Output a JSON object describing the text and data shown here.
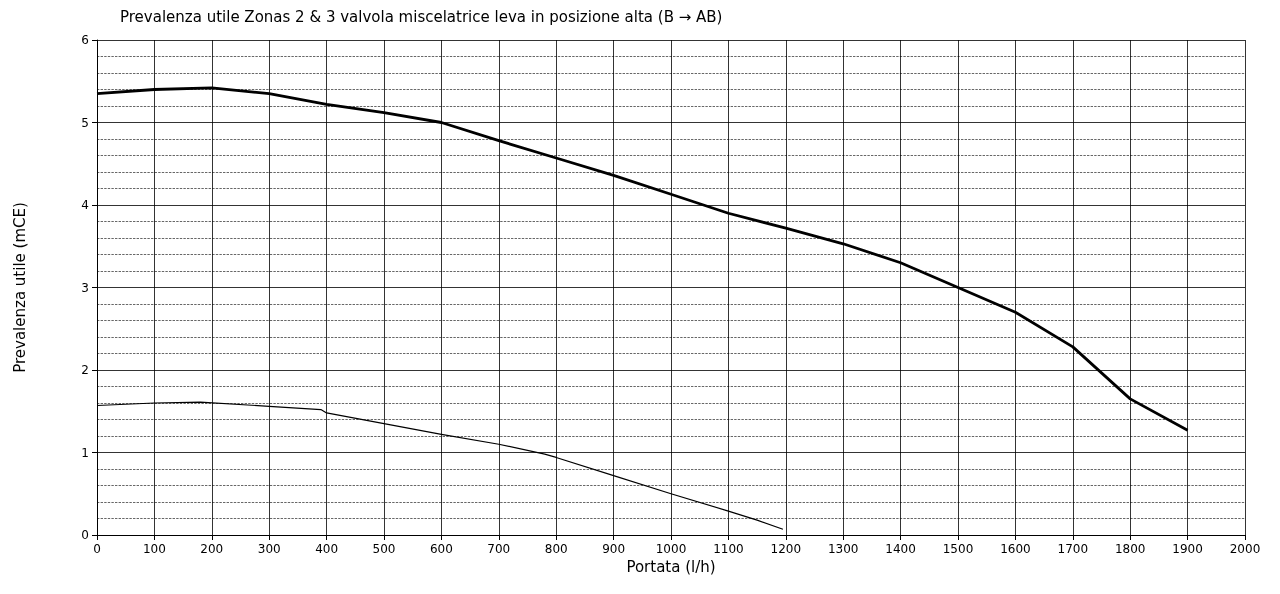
{
  "chart_data": {
    "type": "line",
    "title": "Prevalenza utile Zonas 2 & 3 valvola miscelatrice leva in posizione alta (B → AB)",
    "xlabel": "Portata (l/h)",
    "ylabel": "Prevalenza utile (mCE)",
    "xlim": [
      0,
      2000
    ],
    "xticks": [
      0,
      100,
      200,
      300,
      400,
      500,
      600,
      700,
      800,
      900,
      1000,
      1100,
      1200,
      1300,
      1400,
      1500,
      1600,
      1700,
      1800,
      1900,
      2000
    ],
    "ylim": [
      0,
      6
    ],
    "yticks": [
      0,
      1,
      2,
      3,
      4,
      5,
      6
    ],
    "grid": true,
    "marker": "none",
    "line_style": "solid",
    "series": [
      {
        "color": "#000000",
        "x": [
          0,
          100,
          200,
          300,
          400,
          500,
          600,
          700,
          800,
          900,
          1000,
          1100,
          1200,
          1300,
          1400,
          1500,
          1600,
          1700,
          1800,
          1900
        ],
        "values": [
          5.35,
          5.4,
          5.42,
          5.35,
          5.22,
          5.12,
          5.0,
          4.78,
          4.57,
          4.36,
          4.13,
          3.9,
          3.72,
          3.53,
          3.3,
          3.0,
          2.7,
          2.28,
          1.65,
          1.27
        ]
      },
      {
        "color": "#000000",
        "x": [
          0,
          100,
          180,
          300,
          390,
          400,
          500,
          600,
          700,
          780,
          800,
          900,
          1000,
          1100,
          1150,
          1195
        ],
        "values": [
          1.57,
          1.6,
          1.61,
          1.56,
          1.52,
          1.48,
          1.35,
          1.22,
          1.1,
          0.98,
          0.94,
          0.72,
          0.5,
          0.29,
          0.18,
          0.07
        ]
      }
    ]
  }
}
